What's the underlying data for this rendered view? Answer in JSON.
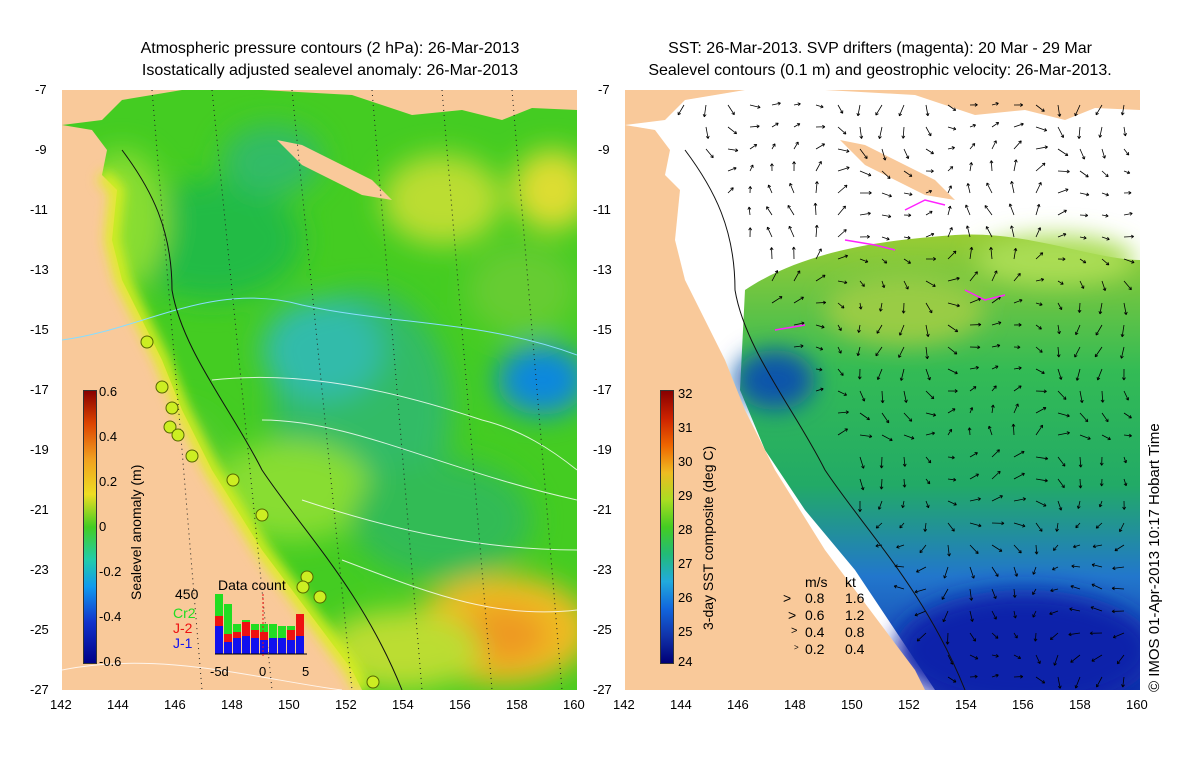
{
  "left_panel": {
    "title_line1": "Atmospheric pressure contours (2 hPa): 26-Mar-2013",
    "title_line2": "Isostatically adjusted sealevel anomaly: 26-Mar-2013",
    "colorbar": {
      "label": "Sealevel anomaly (m)",
      "ticks": [
        "0.6",
        "0.4",
        "0.2",
        "0",
        "-0.2",
        "-0.4",
        "-0.6"
      ],
      "range": [
        -0.6,
        0.6
      ]
    },
    "data_count": {
      "title": "Data count",
      "ymax_label": "450",
      "series": [
        {
          "name": "Cr2",
          "color": "#22dd22"
        },
        {
          "name": "J-2",
          "color": "#ee1111"
        },
        {
          "name": "J-1",
          "color": "#1111ee"
        }
      ],
      "x_ticks": [
        "-5d",
        "0",
        "5"
      ]
    }
  },
  "right_panel": {
    "title_line1": "SST: 26-Mar-2013. SVP drifters (magenta): 20 Mar - 29 Mar",
    "title_line2": "Sealevel contours (0.1 m) and geostrophic velocity: 26-Mar-2013.",
    "colorbar": {
      "label": "3-day SST composite (deg C)",
      "ticks": [
        "32",
        "31",
        "30",
        "29",
        "28",
        "27",
        "26",
        "25",
        "24"
      ],
      "range": [
        24,
        32
      ]
    },
    "velocity_legend": {
      "header_ms": "m/s",
      "header_kt": "kt",
      "rows": [
        {
          "ms": "0.8",
          "kt": "1.6"
        },
        {
          "ms": "0.6",
          "kt": "1.2"
        },
        {
          "ms": "0.4",
          "kt": "0.8"
        },
        {
          "ms": "0.2",
          "kt": "0.4"
        }
      ]
    }
  },
  "axes": {
    "lat_ticks": [
      "-7",
      "-9",
      "-11",
      "-13",
      "-15",
      "-17",
      "-19",
      "-21",
      "-23",
      "-25",
      "-27"
    ],
    "lon_ticks": [
      "142",
      "144",
      "146",
      "148",
      "150",
      "152",
      "154",
      "156",
      "158",
      "160"
    ],
    "lat_range": [
      -27,
      -7
    ],
    "lon_range": [
      142,
      160
    ]
  },
  "credit": "© IMOS 01-Apr-2013 10:17 Hobart Time",
  "colors": {
    "land": "#f9c99a",
    "sla_green": "#33cc22",
    "sla_yellow_green": "#aadd22",
    "sla_cyan": "#33ccaa",
    "sla_orange": "#f0a020",
    "sst_blue": "#1144bb",
    "sst_green": "#22bb55",
    "drifter": "#ff22ff"
  }
}
